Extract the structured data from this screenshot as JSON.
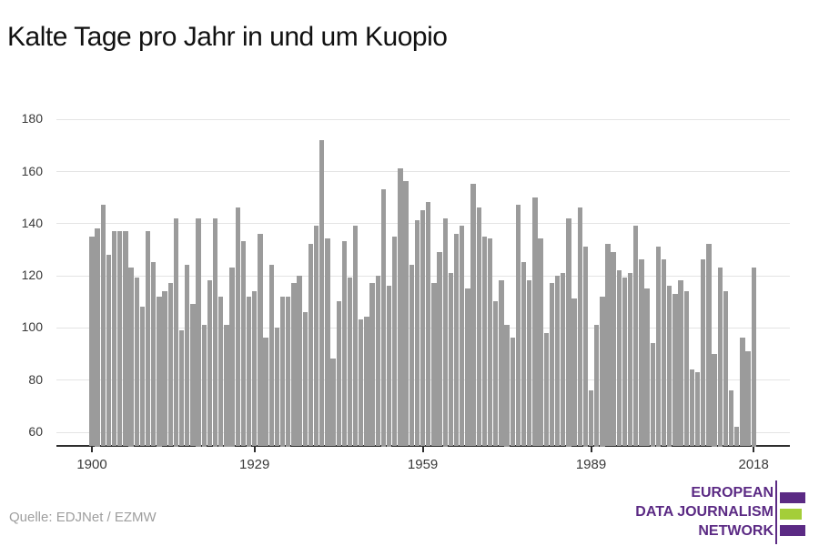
{
  "header": {
    "title": "Kalte Tage pro Jahr in und um Kuopio"
  },
  "source": {
    "label": "Quelle: EDJNet / EZMW"
  },
  "logo": {
    "lines": [
      "EUROPEAN",
      "DATA JOURNALISM",
      "NETWORK"
    ],
    "purple": "#5b2a84",
    "green": "#a4ce39"
  },
  "chart_data": {
    "type": "bar",
    "title": "Kalte Tage pro Jahr in und um Kuopio",
    "xlabel": "",
    "ylabel": "",
    "grid": true,
    "legend": false,
    "bar_color": "#9b9b9b",
    "ylim": [
      54,
      185
    ],
    "yticks": [
      60,
      80,
      100,
      120,
      140,
      160,
      180
    ],
    "xticks": [
      1900,
      1929,
      1959,
      1989,
      2018
    ],
    "years": [
      1900,
      1901,
      1902,
      1903,
      1904,
      1905,
      1906,
      1907,
      1908,
      1909,
      1910,
      1911,
      1912,
      1913,
      1914,
      1915,
      1916,
      1917,
      1918,
      1919,
      1920,
      1921,
      1922,
      1923,
      1924,
      1925,
      1926,
      1927,
      1928,
      1929,
      1930,
      1931,
      1932,
      1933,
      1934,
      1935,
      1936,
      1937,
      1938,
      1939,
      1940,
      1941,
      1942,
      1943,
      1944,
      1945,
      1946,
      1947,
      1948,
      1949,
      1950,
      1951,
      1952,
      1953,
      1954,
      1955,
      1956,
      1957,
      1958,
      1959,
      1960,
      1961,
      1962,
      1963,
      1964,
      1965,
      1966,
      1967,
      1968,
      1969,
      1970,
      1971,
      1972,
      1973,
      1974,
      1975,
      1976,
      1977,
      1978,
      1979,
      1980,
      1981,
      1982,
      1983,
      1984,
      1985,
      1986,
      1987,
      1988,
      1989,
      1990,
      1991,
      1992,
      1993,
      1994,
      1995,
      1996,
      1997,
      1998,
      1999,
      2000,
      2001,
      2002,
      2003,
      2004,
      2005,
      2006,
      2007,
      2008,
      2009,
      2010,
      2011,
      2012,
      2013,
      2014,
      2015,
      2016,
      2017,
      2018
    ],
    "values": [
      135,
      138,
      147,
      128,
      137,
      137,
      137,
      123,
      119,
      108,
      137,
      125,
      112,
      114,
      117,
      142,
      99,
      124,
      109,
      142,
      101,
      118,
      142,
      112,
      101,
      123,
      146,
      133,
      112,
      114,
      136,
      96,
      124,
      100,
      112,
      112,
      117,
      120,
      106,
      132,
      139,
      172,
      134,
      88,
      110,
      133,
      119,
      139,
      103,
      104,
      117,
      120,
      153,
      116,
      135,
      161,
      156,
      124,
      141,
      145,
      148,
      117,
      129,
      142,
      121,
      136,
      139,
      115,
      155,
      146,
      135,
      134,
      110,
      118,
      101,
      96,
      147,
      125,
      118,
      150,
      134,
      98,
      117,
      120,
      121,
      142,
      111,
      146,
      131,
      76,
      101,
      112,
      132,
      129,
      122,
      119,
      121,
      139,
      126,
      115,
      94,
      131,
      126,
      116,
      113,
      118,
      114,
      84,
      83,
      126,
      132,
      90,
      123,
      114,
      76,
      62,
      96,
      91,
      123
    ]
  }
}
